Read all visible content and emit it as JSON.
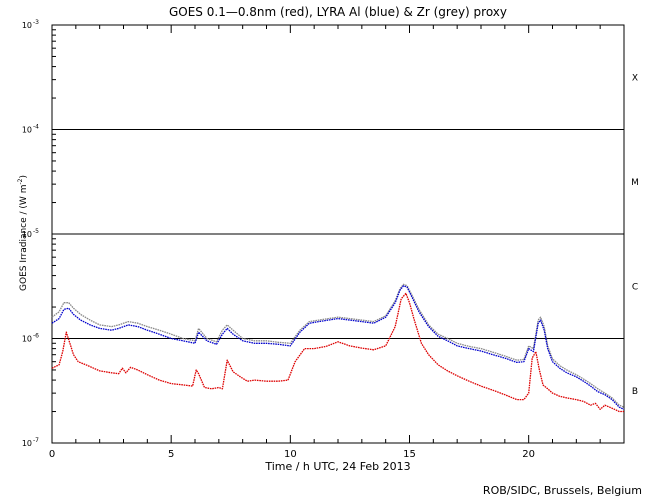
{
  "header": {
    "title": "GOES 0.1—0.8nm (red), LYRA Al (blue) & Zr (grey) proxy"
  },
  "footer": {
    "credit": "ROB/SIDC, Brussels, Belgium"
  },
  "chart_data": {
    "type": "line",
    "title": "GOES 0.1—0.8nm (red), LYRA Al (blue) & Zr (grey) proxy",
    "xlabel": "Time / h UTC, 24 Feb 2013",
    "ylabel_text": "GOES Irradiance / (W m",
    "ylabel_sup": "-2",
    "ylabel_close": ")",
    "xlim": [
      0,
      24
    ],
    "ylim": [
      1e-07,
      0.001
    ],
    "yscale": "log",
    "x_ticks": [
      0,
      5,
      10,
      15,
      20
    ],
    "y_ticks": [
      {
        "value": 1e-07,
        "base": "10",
        "exp": "-7"
      },
      {
        "value": 1e-06,
        "base": "10",
        "exp": "-6"
      },
      {
        "value": 1e-05,
        "base": "10",
        "exp": "-5"
      },
      {
        "value": 0.0001,
        "base": "10",
        "exp": "-4"
      },
      {
        "value": 0.001,
        "base": "10",
        "exp": "-3"
      }
    ],
    "flare_classes": [
      {
        "label": "B",
        "value": 3.16e-07
      },
      {
        "label": "C",
        "value": 3.16e-06
      },
      {
        "label": "M",
        "value": 3.16e-05
      },
      {
        "label": "X",
        "value": 0.000316
      }
    ],
    "class_lines": [
      1e-06,
      1e-05,
      0.0001
    ],
    "grid": false,
    "series": [
      {
        "name": "GOES 0.1—0.8nm",
        "color": "#dd0000",
        "x": [
          0.0,
          0.3,
          0.45,
          0.6,
          0.75,
          0.9,
          1.1,
          1.5,
          2.0,
          2.5,
          2.8,
          2.95,
          3.1,
          3.3,
          3.6,
          4.0,
          4.5,
          5.0,
          5.5,
          5.9,
          6.05,
          6.15,
          6.4,
          6.7,
          7.0,
          7.15,
          7.35,
          7.6,
          7.9,
          8.2,
          8.5,
          9.0,
          9.5,
          9.9,
          10.2,
          10.6,
          11.0,
          11.5,
          12.0,
          12.5,
          13.0,
          13.5,
          14.0,
          14.4,
          14.65,
          14.85,
          15.0,
          15.2,
          15.5,
          15.8,
          16.2,
          16.6,
          17.0,
          17.5,
          18.0,
          18.5,
          19.0,
          19.5,
          19.8,
          20.0,
          20.15,
          20.3,
          20.45,
          20.6,
          20.8,
          21.0,
          21.3,
          21.6,
          22.0,
          22.3,
          22.6,
          22.8,
          23.0,
          23.2,
          23.4,
          23.6,
          23.8,
          24.0
        ],
        "y": [
          5.2e-07,
          5.6e-07,
          7.5e-07,
          1.15e-06,
          9e-07,
          7e-07,
          6e-07,
          5.5e-07,
          4.9e-07,
          4.7e-07,
          4.6e-07,
          5.2e-07,
          4.7e-07,
          5.3e-07,
          5e-07,
          4.5e-07,
          4e-07,
          3.7e-07,
          3.6e-07,
          3.5e-07,
          5e-07,
          4.6e-07,
          3.4e-07,
          3.3e-07,
          3.4e-07,
          3.3e-07,
          6.2e-07,
          4.8e-07,
          4.3e-07,
          3.9e-07,
          4e-07,
          3.9e-07,
          3.9e-07,
          4e-07,
          6e-07,
          8e-07,
          8e-07,
          8.4e-07,
          9.3e-07,
          8.5e-07,
          8.1e-07,
          7.8e-07,
          8.5e-07,
          1.3e-06,
          2.4e-06,
          2.7e-06,
          2.2e-06,
          1.5e-06,
          9e-07,
          7e-07,
          5.6e-07,
          4.9e-07,
          4.4e-07,
          3.9e-07,
          3.5e-07,
          3.2e-07,
          2.9e-07,
          2.6e-07,
          2.6e-07,
          3e-07,
          6.5e-07,
          7.5e-07,
          5e-07,
          3.6e-07,
          3.3e-07,
          3e-07,
          2.8e-07,
          2.7e-07,
          2.6e-07,
          2.5e-07,
          2.3e-07,
          2.4e-07,
          2.1e-07,
          2.3e-07,
          2.2e-07,
          2.1e-07,
          2e-07,
          2e-07
        ]
      },
      {
        "name": "LYRA Al",
        "color": "#0000cc",
        "x": [
          0.0,
          0.3,
          0.5,
          0.7,
          0.9,
          1.2,
          1.6,
          2.0,
          2.5,
          2.8,
          3.2,
          3.6,
          4.0,
          4.5,
          5.0,
          5.5,
          6.0,
          6.15,
          6.5,
          6.9,
          7.15,
          7.35,
          7.6,
          8.0,
          8.5,
          9.0,
          9.5,
          10.0,
          10.4,
          10.8,
          11.2,
          11.6,
          12.0,
          12.5,
          13.0,
          13.5,
          14.0,
          14.4,
          14.6,
          14.75,
          14.9,
          15.1,
          15.4,
          15.8,
          16.2,
          16.6,
          17.0,
          17.5,
          18.0,
          18.5,
          19.0,
          19.5,
          19.8,
          20.0,
          20.2,
          20.4,
          20.5,
          20.65,
          20.8,
          21.0,
          21.3,
          21.6,
          22.0,
          22.3,
          22.6,
          22.9,
          23.2,
          23.5,
          23.8,
          24.0
        ],
        "y": [
          1.4e-06,
          1.55e-06,
          1.9e-06,
          1.95e-06,
          1.7e-06,
          1.5e-06,
          1.35e-06,
          1.25e-06,
          1.2e-06,
          1.25e-06,
          1.35e-06,
          1.3e-06,
          1.2e-06,
          1.1e-06,
          1e-06,
          9.5e-07,
          9e-07,
          1.15e-06,
          9.5e-07,
          8.8e-07,
          1.1e-06,
          1.25e-06,
          1.1e-06,
          9.5e-07,
          9e-07,
          9e-07,
          8.8e-07,
          8.5e-07,
          1.15e-06,
          1.4e-06,
          1.45e-06,
          1.5e-06,
          1.55e-06,
          1.5e-06,
          1.45e-06,
          1.4e-06,
          1.6e-06,
          2.2e-06,
          2.9e-06,
          3.2e-06,
          3.1e-06,
          2.5e-06,
          1.8e-06,
          1.3e-06,
          1.05e-06,
          9.5e-07,
          8.5e-07,
          8e-07,
          7.6e-07,
          7e-07,
          6.5e-07,
          5.9e-07,
          6e-07,
          8e-07,
          7.5e-07,
          1.4e-06,
          1.5e-06,
          1.2e-06,
          8e-07,
          6e-07,
          5.2e-07,
          4.7e-07,
          4.3e-07,
          3.9e-07,
          3.5e-07,
          3.1e-07,
          2.9e-07,
          2.6e-07,
          2.2e-07,
          2.1e-07
        ]
      },
      {
        "name": "LYRA Zr",
        "color": "#888888",
        "x": [
          0.0,
          0.3,
          0.5,
          0.7,
          0.9,
          1.2,
          1.6,
          2.0,
          2.5,
          2.8,
          3.2,
          3.6,
          4.0,
          4.5,
          5.0,
          5.5,
          6.0,
          6.15,
          6.5,
          6.9,
          7.15,
          7.35,
          7.6,
          8.0,
          8.5,
          9.0,
          9.5,
          10.0,
          10.4,
          10.8,
          11.2,
          11.6,
          12.0,
          12.5,
          13.0,
          13.5,
          14.0,
          14.4,
          14.6,
          14.75,
          14.9,
          15.1,
          15.4,
          15.8,
          16.2,
          16.6,
          17.0,
          17.5,
          18.0,
          18.5,
          19.0,
          19.5,
          19.8,
          20.0,
          20.2,
          20.4,
          20.5,
          20.65,
          20.8,
          21.0,
          21.3,
          21.6,
          22.0,
          22.3,
          22.6,
          22.9,
          23.2,
          23.5,
          23.8,
          24.0
        ],
        "y": [
          1.6e-06,
          1.8e-06,
          2.2e-06,
          2.2e-06,
          1.95e-06,
          1.7e-06,
          1.5e-06,
          1.35e-06,
          1.3e-06,
          1.35e-06,
          1.45e-06,
          1.4e-06,
          1.3e-06,
          1.2e-06,
          1.1e-06,
          1e-06,
          9.5e-07,
          1.25e-06,
          1e-06,
          9.3e-07,
          1.2e-06,
          1.35e-06,
          1.2e-06,
          1e-06,
          9.5e-07,
          9.5e-07,
          9.2e-07,
          9e-07,
          1.2e-06,
          1.45e-06,
          1.5e-06,
          1.55e-06,
          1.6e-06,
          1.55e-06,
          1.5e-06,
          1.45e-06,
          1.65e-06,
          2.3e-06,
          3e-06,
          3.3e-06,
          3.2e-06,
          2.6e-06,
          1.9e-06,
          1.35e-06,
          1.1e-06,
          1e-06,
          9e-07,
          8.4e-07,
          8e-07,
          7.4e-07,
          6.8e-07,
          6.2e-07,
          6.3e-07,
          8.5e-07,
          8e-07,
          1.5e-06,
          1.6e-06,
          1.3e-06,
          8.5e-07,
          6.4e-07,
          5.5e-07,
          5e-07,
          4.5e-07,
          4.1e-07,
          3.7e-07,
          3.3e-07,
          3e-07,
          2.7e-07,
          2.3e-07,
          2.2e-07
        ]
      }
    ]
  }
}
